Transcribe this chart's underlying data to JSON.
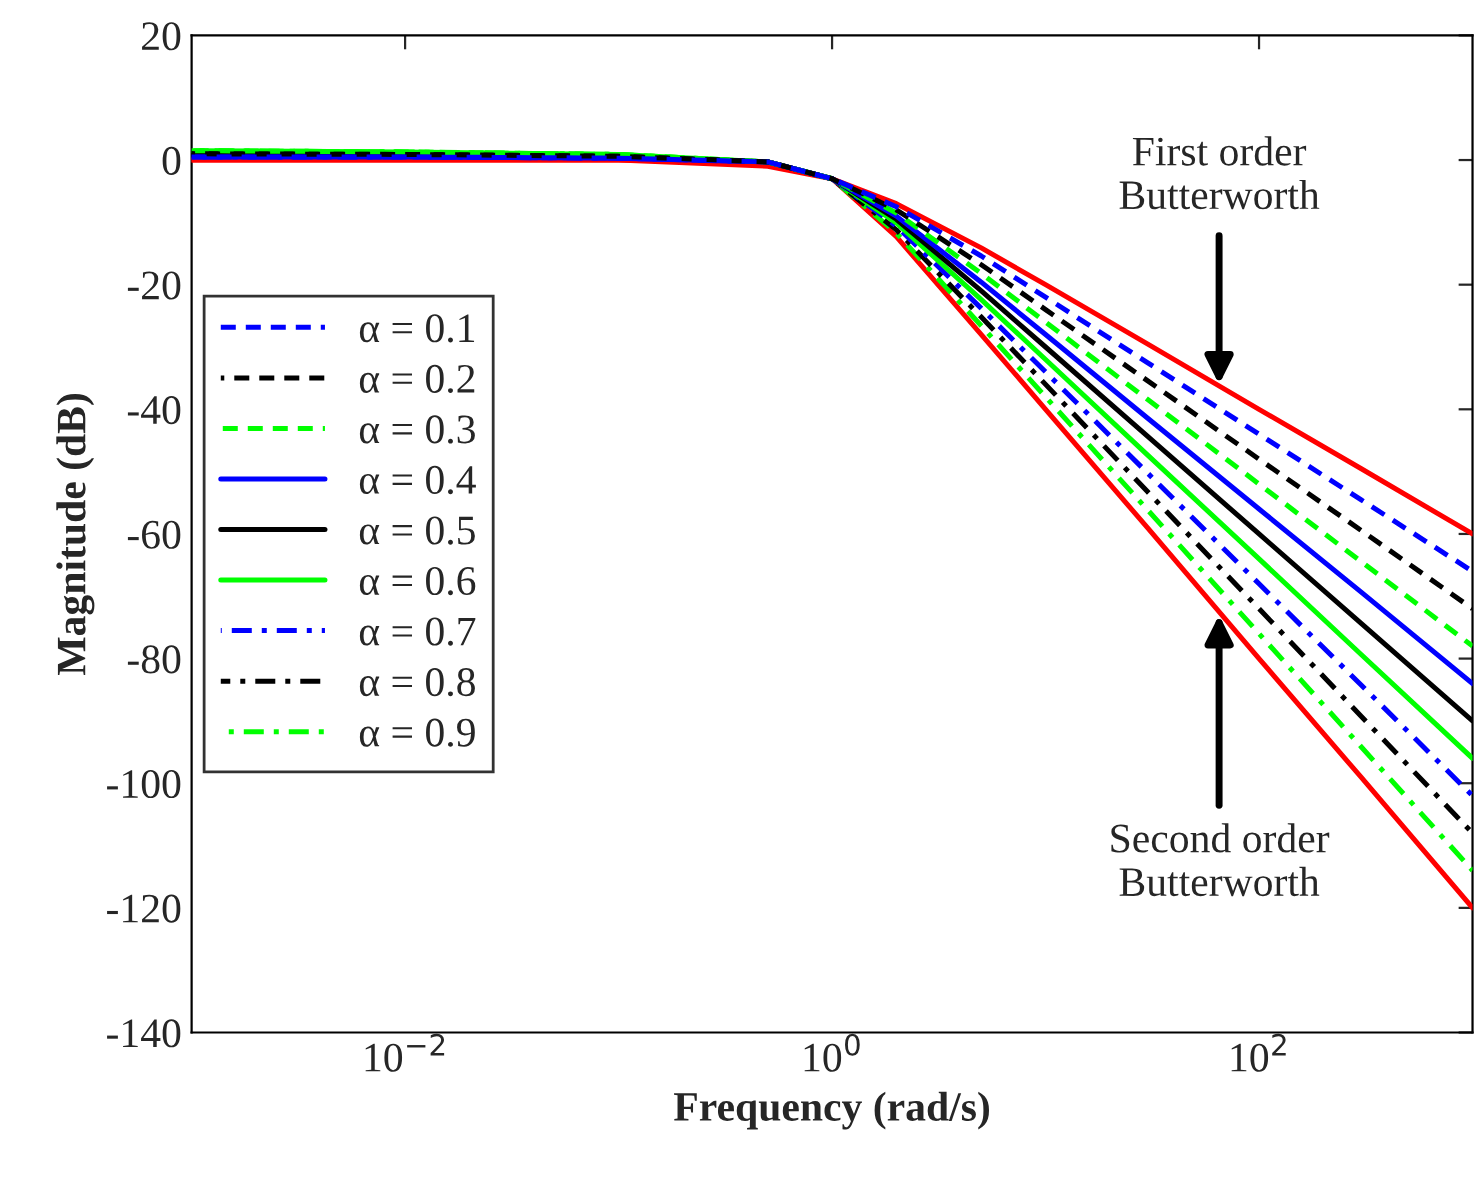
{
  "chart_data": {
    "type": "line",
    "xlabel": "Frequency (rad/s)",
    "ylabel": "Magnitude (dB)",
    "log": "x",
    "xlim": [
      0.001,
      1000
    ],
    "ylim": [
      -140,
      20
    ],
    "xticks": [
      {
        "value": 0.01,
        "label": "10$^{−2}$"
      },
      {
        "value": 1,
        "label": "10$^{0}$"
      },
      {
        "value": 100,
        "label": "10$^{2}$"
      }
    ],
    "yticks": [
      -140,
      -120,
      -100,
      -80,
      -60,
      -40,
      -20,
      0,
      20
    ],
    "grid": false,
    "legend": "left",
    "x": [
      0.001,
      0.01,
      0.1,
      0.5,
      1,
      2,
      5,
      10,
      30,
      100,
      300,
      1000
    ],
    "series": [
      {
        "name": "α = 0.1",
        "color": "#0000ff",
        "line_style": "dashed",
        "values": [
          0.5,
          0.5,
          0.3,
          -0.3,
          -3,
          -7.5,
          -15.4,
          -22,
          -32.5,
          -44,
          -54.5,
          -66
        ]
      },
      {
        "name": "α = 0.2",
        "color": "#000000",
        "line_style": "dashed",
        "values": [
          1,
          0.9,
          0.6,
          -0.3,
          -3,
          -8,
          -16.8,
          -24,
          -35.4,
          -48,
          -59.4,
          -72
        ]
      },
      {
        "name": "α = 0.3",
        "color": "#00ff00",
        "line_style": "dashed",
        "values": [
          1.5,
          1.3,
          0.9,
          -0.3,
          -3,
          -8.5,
          -18.2,
          -26,
          -38.4,
          -52,
          -64.4,
          -78
        ]
      },
      {
        "name": "α = 0.4",
        "color": "#0000ff",
        "line_style": "solid",
        "values": [
          0.5,
          0.5,
          0.3,
          -0.3,
          -3,
          -9,
          -19.6,
          -28,
          -41.4,
          -56,
          -69.3,
          -84
        ]
      },
      {
        "name": "α = 0.5",
        "color": "#000000",
        "line_style": "solid",
        "values": [
          1,
          0.9,
          0.6,
          -0.3,
          -3,
          -9.5,
          -21,
          -30,
          -44.3,
          -60,
          -74.3,
          -90
        ]
      },
      {
        "name": "α = 0.6",
        "color": "#00ff00",
        "line_style": "solid",
        "values": [
          1.5,
          1.3,
          0.9,
          -0.3,
          -3,
          -10.1,
          -22.4,
          -32,
          -47.3,
          -64,
          -79.3,
          -96
        ]
      },
      {
        "name": "α = 0.7",
        "color": "#0000ff",
        "line_style": "dashdot",
        "values": [
          0.5,
          0.5,
          0.3,
          -0.3,
          -3,
          -10.6,
          -23.8,
          -34,
          -50.2,
          -68,
          -84.2,
          -102
        ]
      },
      {
        "name": "α = 0.8",
        "color": "#000000",
        "line_style": "dashdot",
        "values": [
          1,
          0.9,
          0.6,
          -0.3,
          -3,
          -11.2,
          -25.2,
          -36,
          -53.2,
          -72,
          -89.2,
          -108
        ]
      },
      {
        "name": "α = 0.9",
        "color": "#00ff00",
        "line_style": "dashdot",
        "values": [
          1.5,
          1.3,
          0.9,
          -0.3,
          -3,
          -11.7,
          -26.6,
          -38,
          -56.1,
          -76,
          -94.1,
          -114
        ]
      },
      {
        "color": "#ff0000",
        "line_style": "solid",
        "values": [
          0,
          0,
          0,
          -1,
          -3,
          -7,
          -14.1,
          -20,
          -29.5,
          -40,
          -49.5,
          -60
        ]
      },
      {
        "color": "#ff0000",
        "line_style": "solid",
        "values": [
          0,
          0,
          0,
          -0.3,
          -3,
          -12.3,
          -28,
          -40,
          -59,
          -80,
          -99,
          -120
        ]
      }
    ],
    "annotations": [
      {
        "text": "First order\nButterworth",
        "x": 65,
        "y": -36
      },
      {
        "text": "Second order\nButterworth",
        "x": 65,
        "y": -73
      }
    ]
  }
}
